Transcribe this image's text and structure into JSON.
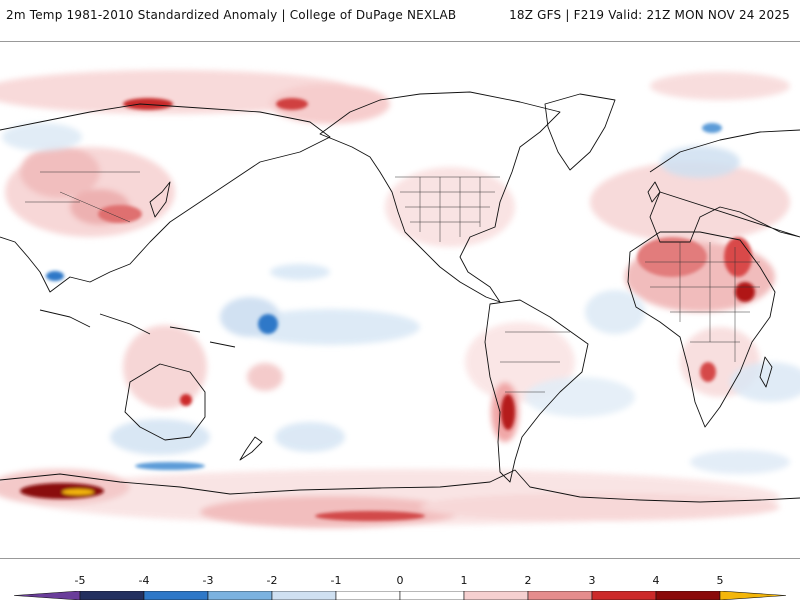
{
  "header": {
    "left_title": "2m Temp 1981-2010 Standardized Anomaly | College of DuPage NEXLAB",
    "right_title": "18Z GFS | F219 Valid: 21Z MON NOV 24 2025"
  },
  "legend": {
    "ticks": [
      "-5",
      "-4",
      "-3",
      "-2",
      "-1",
      "0",
      "1",
      "2",
      "3",
      "4",
      "5"
    ],
    "colors": [
      "#6a3d9a",
      "#23305f",
      "#2e78c8",
      "#7bb2e0",
      "#cfe0f1",
      "#ffffff",
      "#ffffff",
      "#f6d0d0",
      "#e58d8d",
      "#cc2a2a",
      "#8a0a0a",
      "#f3b60a"
    ]
  },
  "map": {
    "land_color": "#ffffff",
    "ocean_color": "#ffffff",
    "coastline_color": "#111111"
  }
}
